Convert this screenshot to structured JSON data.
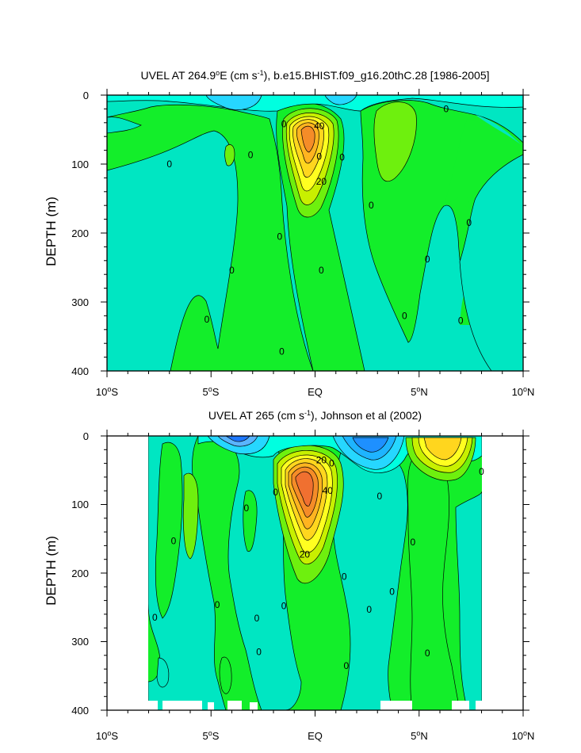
{
  "chart_data": [
    {
      "type": "heatmap",
      "title": "UVEL AT 264.9°E (cm s⁻¹), b.e15.BHIST.f09_g16.20thC.28 [1986-2005]",
      "ylabel": "DEPTH (m)",
      "xlim": [
        -10,
        10
      ],
      "ylim": [
        400,
        0
      ],
      "x_ticks": [
        "10°S",
        "5°S",
        "EQ",
        "5°N",
        "10°N"
      ],
      "y_ticks": [
        "0",
        "100",
        "200",
        "300",
        "400"
      ],
      "contour_labels": [
        {
          "text": "40",
          "x": 0.2,
          "y": 45
        },
        {
          "text": "20",
          "x": 0.3,
          "y": 125
        },
        {
          "text": "0",
          "x": -7.0,
          "y": 100
        },
        {
          "text": "0",
          "x": -1.5,
          "y": 42
        },
        {
          "text": "0",
          "x": -3.1,
          "y": 87
        },
        {
          "text": "0",
          "x": 0.2,
          "y": 89
        },
        {
          "text": "0",
          "x": 1.3,
          "y": 90
        },
        {
          "text": "0",
          "x": 2.7,
          "y": 160
        },
        {
          "text": "0",
          "x": -1.7,
          "y": 205
        },
        {
          "text": "0",
          "x": -4.0,
          "y": 254
        },
        {
          "text": "0",
          "x": 0.3,
          "y": 254
        },
        {
          "text": "0",
          "x": -5.2,
          "y": 325
        },
        {
          "text": "0",
          "x": 4.3,
          "y": 320
        },
        {
          "text": "0",
          "x": 5.4,
          "y": 238
        },
        {
          "text": "0",
          "x": 7.0,
          "y": 327
        },
        {
          "text": "0",
          "x": 6.3,
          "y": 20
        },
        {
          "text": "0",
          "x": 7.4,
          "y": 185
        },
        {
          "text": "0",
          "x": -1.6,
          "y": 372
        }
      ]
    },
    {
      "type": "heatmap",
      "title": "UVEL AT 265 (cm s⁻¹), Johnson et al (2002)",
      "ylabel": "DEPTH (m)",
      "xlim": [
        -10,
        10
      ],
      "ylim": [
        400,
        0
      ],
      "x_ticks": [
        "10°S",
        "5°S",
        "EQ",
        "5°N",
        "10°N"
      ],
      "y_ticks": [
        "0",
        "100",
        "200",
        "300",
        "400"
      ],
      "contour_labels": [
        {
          "text": "20",
          "x": 0.3,
          "y": 35
        },
        {
          "text": "40",
          "x": 0.6,
          "y": 80
        },
        {
          "text": "20",
          "x": -0.5,
          "y": 173
        },
        {
          "text": "0",
          "x": 0.8,
          "y": 40
        },
        {
          "text": "0",
          "x": -1.9,
          "y": 82
        },
        {
          "text": "0",
          "x": -3.3,
          "y": 105
        },
        {
          "text": "0",
          "x": 3.1,
          "y": 88
        },
        {
          "text": "0",
          "x": 8.0,
          "y": 52
        },
        {
          "text": "0",
          "x": -6.8,
          "y": 153
        },
        {
          "text": "0",
          "x": 4.7,
          "y": 155
        },
        {
          "text": "0",
          "x": 1.4,
          "y": 205
        },
        {
          "text": "0",
          "x": 3.7,
          "y": 227
        },
        {
          "text": "0",
          "x": -7.7,
          "y": 265
        },
        {
          "text": "0",
          "x": -4.7,
          "y": 246
        },
        {
          "text": "0",
          "x": -2.8,
          "y": 266
        },
        {
          "text": "0",
          "x": -1.5,
          "y": 248
        },
        {
          "text": "0",
          "x": 2.6,
          "y": 253
        },
        {
          "text": "0",
          "x": -2.7,
          "y": 315
        },
        {
          "text": "0",
          "x": 5.4,
          "y": 317
        },
        {
          "text": "0",
          "x": 1.5,
          "y": 335
        }
      ]
    }
  ]
}
